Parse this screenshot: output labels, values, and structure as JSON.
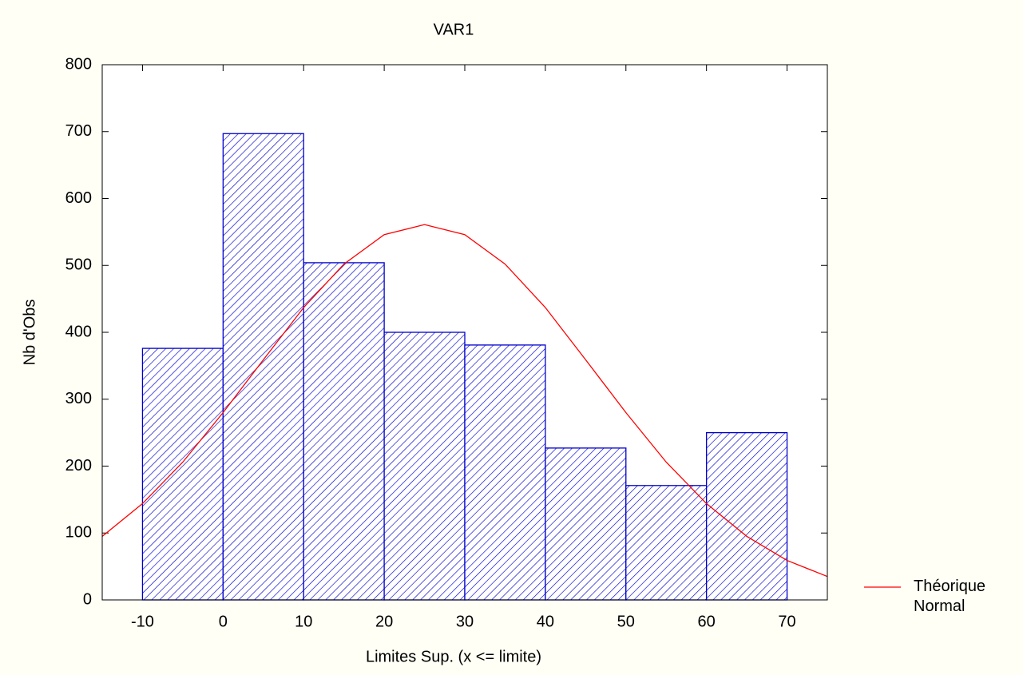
{
  "chart_data": {
    "type": "histogram",
    "title": "VAR1",
    "x_label": "Limites Sup. (x <= limite)",
    "y_label": "Nb d'Obs",
    "bins": [
      -10,
      0,
      10,
      20,
      30,
      40,
      50,
      60,
      70
    ],
    "values": [
      376,
      697,
      504,
      400,
      381,
      227,
      171,
      250
    ],
    "color": "#0000cc",
    "xlim": [
      -15,
      75
    ],
    "ylim": [
      0,
      800
    ],
    "xticks": [
      -10,
      0,
      10,
      20,
      30,
      40,
      50,
      60,
      70
    ],
    "yticks": [
      0,
      100,
      200,
      300,
      400,
      500,
      600,
      700,
      800
    ],
    "legend": "right",
    "series": [
      {
        "name": "Théorique Normal",
        "color": "#ff0000",
        "x": [
          -15,
          -10,
          -5,
          0,
          5,
          10,
          15,
          20,
          25,
          30,
          35,
          40,
          45,
          50,
          55,
          60,
          65,
          70,
          75
        ],
        "values": [
          95,
          144,
          206,
          280,
          359,
          437,
          502,
          546,
          561,
          546,
          502,
          437,
          359,
          280,
          206,
          144,
          95,
          59,
          35
        ]
      }
    ]
  }
}
